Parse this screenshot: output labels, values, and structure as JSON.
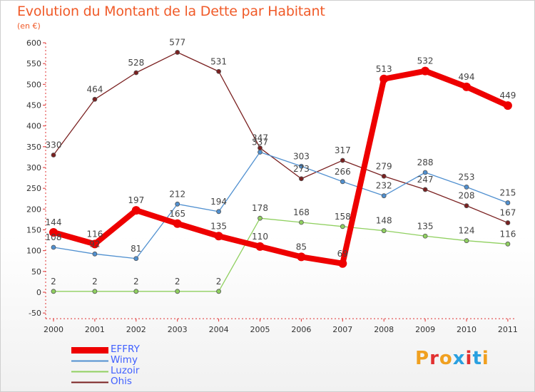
{
  "title": "Evolution du Montant de la Dette par Habitant",
  "subtitle": "(en €)",
  "logo": {
    "letters": [
      "P",
      "r",
      "o",
      "x",
      "i",
      "t",
      "i"
    ],
    "colors": [
      "#f0a020",
      "#e23030",
      "#f0a020",
      "#2aa0e0",
      "#e23030",
      "#2aa0e0",
      "#f0a020"
    ]
  },
  "chart_data": {
    "type": "line",
    "x": [
      "2000",
      "2001",
      "2002",
      "2003",
      "2004",
      "2005",
      "2006",
      "2007",
      "2008",
      "2009",
      "2010",
      "2011"
    ],
    "ylim": [
      -50,
      600
    ],
    "yticks": [
      -50,
      0,
      50,
      100,
      150,
      200,
      250,
      300,
      350,
      400,
      450,
      500,
      550,
      600
    ],
    "grid": false,
    "legend": "bottom-left",
    "series": [
      {
        "name": "EFFRY",
        "color": "#ee0000",
        "values": [
          144,
          116,
          197,
          165,
          135,
          110,
          85,
          69,
          513,
          532,
          494,
          449
        ]
      },
      {
        "name": "Wimy",
        "color": "#5090d0",
        "values": [
          108,
          92,
          81,
          212,
          194,
          337,
          303,
          266,
          232,
          288,
          253,
          215
        ]
      },
      {
        "name": "Luzoir",
        "color": "#90d060",
        "values": [
          2,
          2,
          2,
          2,
          2,
          178,
          168,
          158,
          148,
          135,
          124,
          116
        ]
      },
      {
        "name": "Ohis",
        "color": "#7a2020",
        "values": [
          330,
          464,
          528,
          577,
          531,
          347,
          273,
          317,
          279,
          247,
          208,
          167
        ]
      }
    ]
  }
}
